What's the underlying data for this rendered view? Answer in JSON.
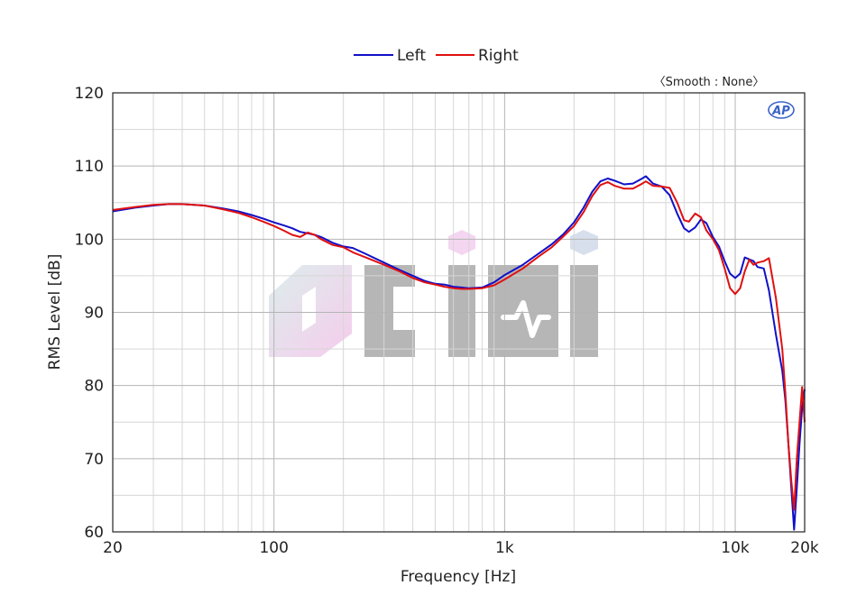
{
  "chart_data": {
    "type": "line",
    "title": "",
    "xlabel": "Frequency [Hz]",
    "ylabel": "RMS Level [dB]",
    "x_scale": "log",
    "xlim": [
      20,
      20000
    ],
    "ylim": [
      60,
      120
    ],
    "x_ticks": [
      {
        "value": 20,
        "label": "20"
      },
      {
        "value": 100,
        "label": "100"
      },
      {
        "value": 1000,
        "label": "1k"
      },
      {
        "value": 10000,
        "label": "10k"
      },
      {
        "value": 20000,
        "label": "20k"
      }
    ],
    "y_ticks": [
      {
        "value": 60,
        "label": "60"
      },
      {
        "value": 70,
        "label": "70"
      },
      {
        "value": 80,
        "label": "80"
      },
      {
        "value": 90,
        "label": "90"
      },
      {
        "value": 100,
        "label": "100"
      },
      {
        "value": 110,
        "label": "110"
      },
      {
        "value": 120,
        "label": "120"
      }
    ],
    "grid": true,
    "legend_position": "top-center",
    "annotation": "〈Smooth : None〉",
    "logo_text": "AP",
    "watermark_text": "cidi",
    "series": [
      {
        "name": "Left",
        "color": "#1010c8",
        "points": [
          [
            20,
            103.8
          ],
          [
            25,
            104.3
          ],
          [
            30,
            104.6
          ],
          [
            35,
            104.8
          ],
          [
            40,
            104.8
          ],
          [
            50,
            104.6
          ],
          [
            60,
            104.2
          ],
          [
            70,
            103.8
          ],
          [
            80,
            103.3
          ],
          [
            90,
            102.8
          ],
          [
            100,
            102.3
          ],
          [
            110,
            101.9
          ],
          [
            120,
            101.5
          ],
          [
            130,
            101.0
          ],
          [
            140,
            100.8
          ],
          [
            150,
            100.6
          ],
          [
            160,
            100.3
          ],
          [
            180,
            99.5
          ],
          [
            200,
            99.0
          ],
          [
            220,
            98.8
          ],
          [
            250,
            98.0
          ],
          [
            300,
            96.8
          ],
          [
            350,
            95.8
          ],
          [
            400,
            95.0
          ],
          [
            450,
            94.3
          ],
          [
            500,
            93.9
          ],
          [
            550,
            93.8
          ],
          [
            600,
            93.5
          ],
          [
            650,
            93.4
          ],
          [
            700,
            93.3
          ],
          [
            800,
            93.4
          ],
          [
            900,
            94.1
          ],
          [
            1000,
            95.1
          ],
          [
            1200,
            96.5
          ],
          [
            1400,
            98.0
          ],
          [
            1600,
            99.3
          ],
          [
            1800,
            100.7
          ],
          [
            2000,
            102.3
          ],
          [
            2200,
            104.3
          ],
          [
            2400,
            106.5
          ],
          [
            2600,
            107.9
          ],
          [
            2800,
            108.3
          ],
          [
            3000,
            108.0
          ],
          [
            3300,
            107.5
          ],
          [
            3600,
            107.6
          ],
          [
            3900,
            108.2
          ],
          [
            4100,
            108.6
          ],
          [
            4400,
            107.6
          ],
          [
            4800,
            107.2
          ],
          [
            5200,
            106.0
          ],
          [
            5600,
            103.5
          ],
          [
            6000,
            101.5
          ],
          [
            6300,
            101.0
          ],
          [
            6700,
            101.6
          ],
          [
            7100,
            102.7
          ],
          [
            7500,
            102.2
          ],
          [
            8000,
            100.3
          ],
          [
            8500,
            99.0
          ],
          [
            9000,
            97.0
          ],
          [
            9500,
            95.3
          ],
          [
            10000,
            94.7
          ],
          [
            10500,
            95.3
          ],
          [
            11000,
            97.5
          ],
          [
            12000,
            97.0
          ],
          [
            12500,
            96.2
          ],
          [
            13300,
            96.0
          ],
          [
            14000,
            93.0
          ],
          [
            15000,
            87.0
          ],
          [
            16000,
            82.0
          ],
          [
            16500,
            78.0
          ],
          [
            17000,
            72.0
          ],
          [
            17500,
            66.0
          ],
          [
            18000,
            60.3
          ],
          [
            18500,
            66.0
          ],
          [
            19000,
            72.0
          ],
          [
            19500,
            77.0
          ],
          [
            20000,
            79.5
          ]
        ]
      },
      {
        "name": "Right",
        "color": "#e01010",
        "points": [
          [
            20,
            104.0
          ],
          [
            25,
            104.4
          ],
          [
            30,
            104.7
          ],
          [
            35,
            104.8
          ],
          [
            40,
            104.8
          ],
          [
            50,
            104.6
          ],
          [
            60,
            104.1
          ],
          [
            70,
            103.6
          ],
          [
            80,
            103.0
          ],
          [
            90,
            102.4
          ],
          [
            100,
            101.8
          ],
          [
            110,
            101.2
          ],
          [
            120,
            100.6
          ],
          [
            130,
            100.3
          ],
          [
            140,
            100.9
          ],
          [
            150,
            100.6
          ],
          [
            160,
            100.0
          ],
          [
            180,
            99.2
          ],
          [
            200,
            98.9
          ],
          [
            220,
            98.2
          ],
          [
            250,
            97.5
          ],
          [
            300,
            96.5
          ],
          [
            350,
            95.6
          ],
          [
            400,
            94.7
          ],
          [
            450,
            94.1
          ],
          [
            500,
            93.8
          ],
          [
            550,
            93.5
          ],
          [
            600,
            93.3
          ],
          [
            650,
            93.2
          ],
          [
            700,
            93.2
          ],
          [
            800,
            93.3
          ],
          [
            900,
            93.7
          ],
          [
            1000,
            94.5
          ],
          [
            1200,
            96.0
          ],
          [
            1400,
            97.6
          ],
          [
            1600,
            98.9
          ],
          [
            1800,
            100.4
          ],
          [
            2000,
            101.8
          ],
          [
            2200,
            103.7
          ],
          [
            2400,
            105.9
          ],
          [
            2600,
            107.4
          ],
          [
            2800,
            107.8
          ],
          [
            3000,
            107.3
          ],
          [
            3300,
            106.9
          ],
          [
            3600,
            106.9
          ],
          [
            3900,
            107.5
          ],
          [
            4100,
            107.9
          ],
          [
            4400,
            107.3
          ],
          [
            4800,
            107.2
          ],
          [
            5200,
            107.0
          ],
          [
            5600,
            105.0
          ],
          [
            6000,
            102.6
          ],
          [
            6300,
            102.4
          ],
          [
            6700,
            103.5
          ],
          [
            7100,
            103.0
          ],
          [
            7500,
            101.2
          ],
          [
            8000,
            100.0
          ],
          [
            8500,
            98.5
          ],
          [
            9000,
            96.0
          ],
          [
            9500,
            93.3
          ],
          [
            10000,
            92.5
          ],
          [
            10500,
            93.3
          ],
          [
            11000,
            95.6
          ],
          [
            11500,
            97.2
          ],
          [
            12000,
            96.5
          ],
          [
            12500,
            96.8
          ],
          [
            13300,
            97.0
          ],
          [
            14000,
            97.4
          ],
          [
            15000,
            92.0
          ],
          [
            16000,
            85.0
          ],
          [
            16500,
            79.0
          ],
          [
            17000,
            72.0
          ],
          [
            17500,
            67.0
          ],
          [
            18000,
            63.0
          ],
          [
            18500,
            70.0
          ],
          [
            19000,
            75.0
          ],
          [
            19500,
            79.8
          ],
          [
            20000,
            75.0
          ]
        ]
      }
    ]
  }
}
